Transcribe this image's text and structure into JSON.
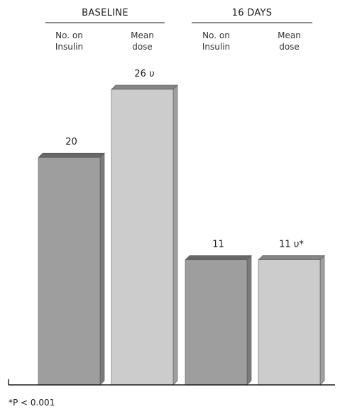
{
  "chart_data": {
    "type": "bar",
    "groups": [
      {
        "title": "BASELINE",
        "categories": [
          "No. on\nInsulin",
          "Mean\ndose"
        ]
      },
      {
        "title": "16 DAYS",
        "categories": [
          "No. on\nInsulin",
          "Mean\ndose"
        ]
      }
    ],
    "bars": [
      {
        "group": 0,
        "category": "No. on Insulin",
        "value": 20,
        "label": "20",
        "color": "#9e9e9e"
      },
      {
        "group": 0,
        "category": "Mean dose",
        "value": 26,
        "label": "26 υ",
        "color": "#cccccc"
      },
      {
        "group": 1,
        "category": "No. on Insulin",
        "value": 11,
        "label": "11",
        "color": "#9e9e9e"
      },
      {
        "group": 1,
        "category": "Mean dose",
        "value": 11,
        "label": "11 υ*",
        "color": "#cccccc"
      }
    ],
    "ylim": [
      0,
      26
    ],
    "grid": false,
    "footnote": "*P < 0.001"
  }
}
